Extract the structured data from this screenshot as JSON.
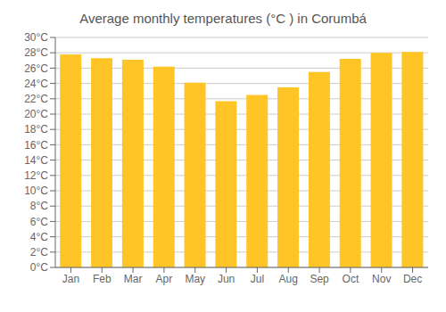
{
  "chart_data": {
    "type": "bar",
    "title": "Average monthly temperatures (°C ) in Corumbá",
    "categories": [
      "Jan",
      "Feb",
      "Mar",
      "Apr",
      "May",
      "Jun",
      "Jul",
      "Aug",
      "Sep",
      "Oct",
      "Nov",
      "Dec"
    ],
    "values": [
      27.8,
      27.3,
      27.1,
      26.2,
      24.1,
      21.7,
      22.5,
      23.5,
      25.5,
      27.2,
      28.0,
      28.1
    ],
    "color": "#FFC425",
    "ylim": [
      0,
      30
    ],
    "yticks": [
      {
        "value": 0,
        "label": "0°C"
      },
      {
        "value": 2,
        "label": "2°C"
      },
      {
        "value": 4,
        "label": "4°C"
      },
      {
        "value": 6,
        "label": "6°C"
      },
      {
        "value": 8,
        "label": "8°C"
      },
      {
        "value": 10,
        "label": "10°C"
      },
      {
        "value": 12,
        "label": "12°C"
      },
      {
        "value": 14,
        "label": "14°C"
      },
      {
        "value": 16,
        "label": "16°C"
      },
      {
        "value": 18,
        "label": "18°C"
      },
      {
        "value": 20,
        "label": "20°C"
      },
      {
        "value": 22,
        "label": "22°C"
      },
      {
        "value": 24,
        "label": "24°C"
      },
      {
        "value": 26,
        "label": "26°C"
      },
      {
        "value": 28,
        "label": "28°C"
      },
      {
        "value": 30,
        "label": "30°C"
      }
    ],
    "grid": true
  }
}
